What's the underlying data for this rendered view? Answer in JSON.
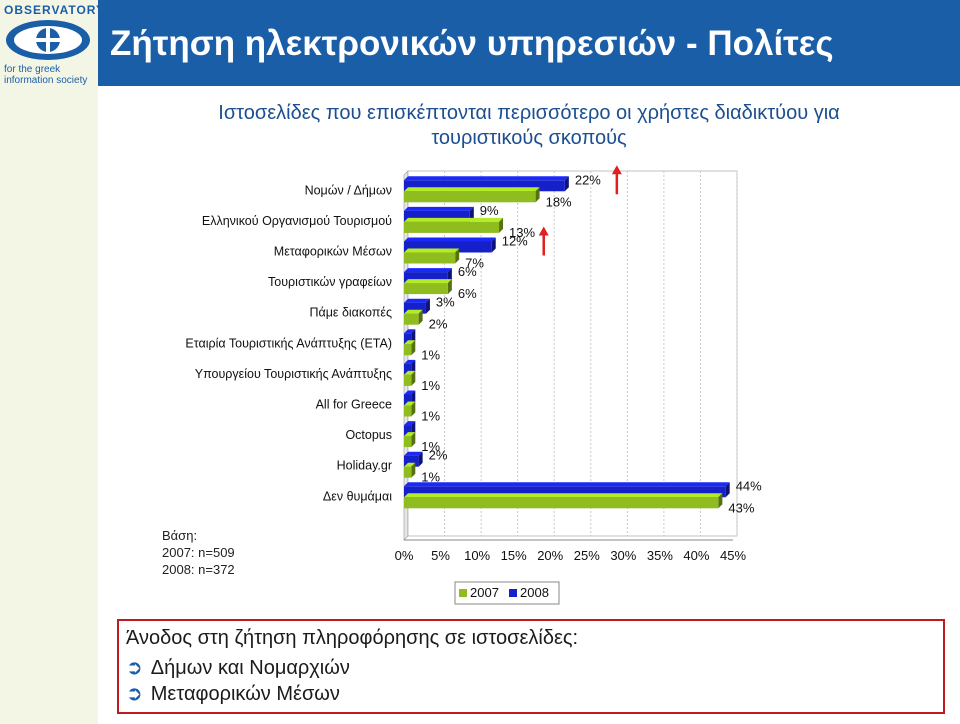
{
  "logo": {
    "name": "OBSERVATORY",
    "tagline_lines": [
      "for the greek",
      "information society"
    ]
  },
  "header": {
    "title": "Ζήτηση ηλεκτρονικών υπηρεσιών - Πολίτες"
  },
  "subtitle_lines": [
    "Ιστοσελίδες που επισκέπτονται περισσότερο οι χρήστες διαδικτύου για",
    "τουριστικούς σκοπούς"
  ],
  "base_note": {
    "label": "Βάση:",
    "lines": [
      "2007: n=509",
      "2008: n=372"
    ]
  },
  "chart_data": {
    "type": "bar",
    "orientation": "horizontal",
    "categories": [
      "Νομών / Δήμων",
      "Ελληνικού Οργανισμού Τουρισμού",
      "Μεταφορικών Μέσων",
      "Τουριστικών γραφείων",
      "Πάμε διακοπές",
      "Εταιρία Τουριστικής Ανάπτυξης (ΕΤΑ)",
      "Υπουργείου Τουριστικής Ανάπτυξης",
      "All for Greece",
      "Octopus",
      "Holiday.gr",
      "Δεν θυμάμαι"
    ],
    "series": [
      {
        "name": "2007",
        "color": "#8fbc1e",
        "values": [
          18,
          13,
          7,
          6,
          2,
          1,
          1,
          1,
          1,
          1,
          43
        ]
      },
      {
        "name": "2008",
        "color": "#1520c8",
        "values": [
          22,
          9,
          12,
          6,
          3,
          1,
          1,
          1,
          1,
          2,
          44
        ]
      }
    ],
    "labels_2007": [
      "18%",
      "13%",
      "7%",
      "6%",
      "2%",
      "1%",
      "1%",
      "1%",
      "1%",
      "1%",
      "43%"
    ],
    "labels_2008": [
      "22%",
      "9%",
      "12%",
      "6%",
      "3%",
      "",
      "",
      "",
      "",
      "2%",
      "44%"
    ],
    "increase_marked": [
      "Νομών / Δήμων",
      "Μεταφορικών Μέσων"
    ],
    "x_ticks": [
      "0%",
      "5%",
      "10%",
      "15%",
      "20%",
      "25%",
      "30%",
      "35%",
      "40%",
      "45%"
    ],
    "xlim": [
      0,
      45
    ],
    "grid": true,
    "legend_position": "bottom",
    "legend": [
      "2007",
      "2008"
    ]
  },
  "note": {
    "title": "Άνοδος στη ζήτηση πληροφόρησης σε ιστοσελίδες:",
    "items": [
      "Δήμων και Νομαρχιών",
      "Μεταφορικών Μέσων"
    ],
    "bullet": "➲"
  }
}
